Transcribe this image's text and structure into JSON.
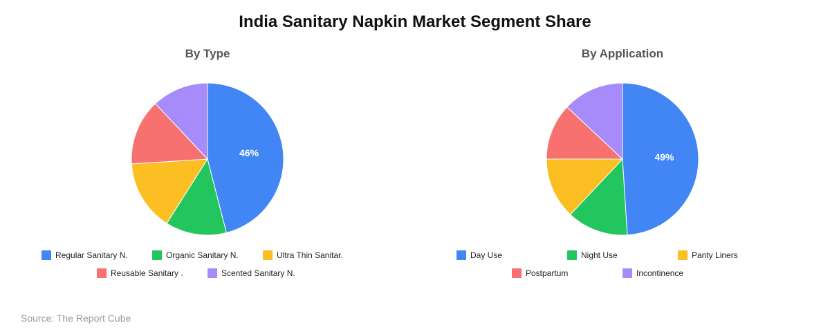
{
  "title": "India Sanitary Napkin Market Segment Share",
  "source": "Source: The Report Cube",
  "chart_data": [
    {
      "type": "pie",
      "title": "By Type",
      "categories": [
        "Regular Sanitary N.",
        "Organic Sanitary N.",
        "Ultra Thin Sanitar.",
        "Reusable Sanitary .",
        "Scented Sanitary N."
      ],
      "values": [
        46,
        13,
        15,
        14,
        12
      ],
      "colors": [
        "#4285f4",
        "#22c55e",
        "#fbbf24",
        "#f87171",
        "#a78bfa"
      ],
      "data_labels": [
        "46%",
        "",
        "",
        "",
        ""
      ],
      "legend_position": "bottom"
    },
    {
      "type": "pie",
      "title": "By Application",
      "categories": [
        "Day Use",
        "Night Use",
        "Panty Liners",
        "Postpartum",
        "Incontinence"
      ],
      "values": [
        49,
        13,
        13,
        12,
        13
      ],
      "colors": [
        "#4285f4",
        "#22c55e",
        "#fbbf24",
        "#f87171",
        "#a78bfa"
      ],
      "data_labels": [
        "49%",
        "",
        "",
        "",
        ""
      ],
      "legend_position": "bottom"
    }
  ]
}
